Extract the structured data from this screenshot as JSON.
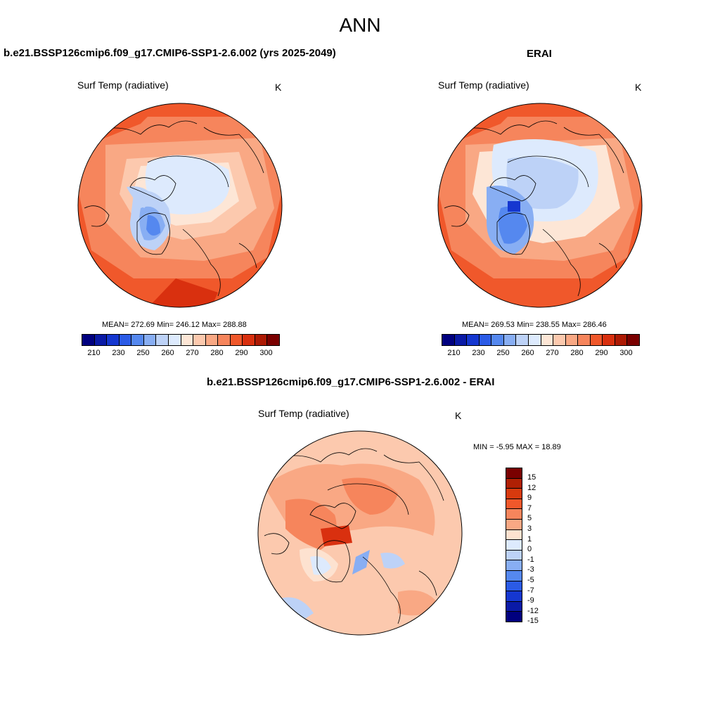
{
  "main_title": "ANN",
  "panels": [
    {
      "title": "b.e21.BSSP126cmip6.f09_g17.CMIP6-SSP1-2.6.002 (yrs 2025-2049)",
      "var_label": "Surf Temp (radiative)",
      "units": "K",
      "stats": "MEAN= 272.69  Min= 246.12  Max= 288.88"
    },
    {
      "title": "ERAI",
      "var_label": "Surf Temp (radiative)",
      "units": "K",
      "stats": "MEAN= 269.53  Min= 238.55  Max= 286.46"
    },
    {
      "title": "b.e21.BSSP126cmip6.f09_g17.CMIP6-SSP1-2.6.002 - ERAI",
      "var_label": "Surf Temp (radiative)",
      "units": "K",
      "stats": "MIN =  -5.95 MAX =  18.89"
    }
  ],
  "colorbar_abs": {
    "colors": [
      "#00007f",
      "#0a1aa6",
      "#1537d0",
      "#2b5be6",
      "#5588ef",
      "#88aef3",
      "#bdd2f7",
      "#ddeafd",
      "#fde6d6",
      "#fcc9ae",
      "#f9a884",
      "#f6855c",
      "#f0582b",
      "#d9300f",
      "#ad1a04",
      "#7a0000"
    ],
    "labels": [
      "210",
      "230",
      "250",
      "260",
      "270",
      "280",
      "290",
      "300"
    ]
  },
  "colorbar_diff": {
    "colors": [
      "#7a0000",
      "#b02004",
      "#d83a0e",
      "#f0582b",
      "#f6855c",
      "#f9a884",
      "#fde2d0",
      "#ddeafd",
      "#bdd2f7",
      "#88aef3",
      "#5588ef",
      "#2b5be6",
      "#1537d0",
      "#0a1aa6",
      "#00007f"
    ],
    "labels": [
      "15",
      "12",
      "9",
      "7",
      "5",
      "3",
      "1",
      "0",
      "-1",
      "-3",
      "-5",
      "-7",
      "-9",
      "-12",
      "-15"
    ]
  }
}
